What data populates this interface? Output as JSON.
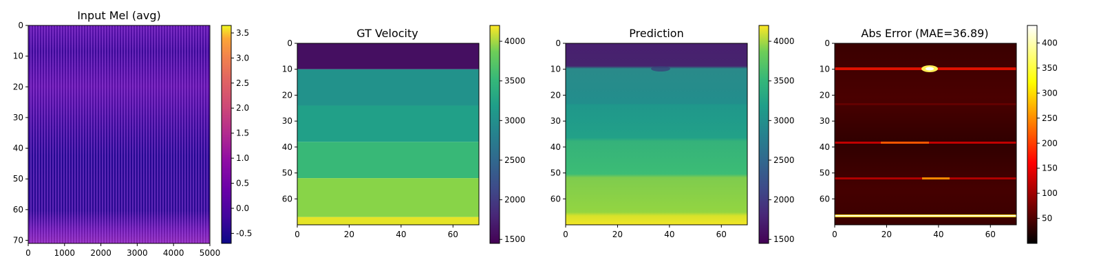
{
  "chart_data": [
    {
      "type": "heatmap",
      "title": "Input Mel (avg)",
      "colormap": "plasma",
      "x_ticks": [
        "0",
        "1000",
        "2000",
        "3000",
        "4000",
        "5000"
      ],
      "y_ticks": [
        "0",
        "10",
        "20",
        "30",
        "40",
        "50",
        "60",
        "70"
      ],
      "xlim": [
        0,
        5000
      ],
      "ylim": [
        71,
        0
      ],
      "colorbar_ticks": [
        "-0.5",
        "0.0",
        "0.5",
        "1.0",
        "1.5",
        "2.0",
        "2.5",
        "3.0",
        "3.5"
      ],
      "colorbar_range": [
        -0.7,
        3.65
      ]
    },
    {
      "type": "heatmap",
      "title": "GT Velocity",
      "colormap": "viridis",
      "x_ticks": [
        "0",
        "20",
        "40",
        "60"
      ],
      "y_ticks": [
        "0",
        "10",
        "20",
        "30",
        "40",
        "50",
        "60"
      ],
      "xlim": [
        0,
        70
      ],
      "ylim": [
        70,
        0
      ],
      "colorbar_ticks": [
        "1500",
        "2000",
        "2500",
        "3000",
        "3500",
        "4000"
      ],
      "colorbar_range": [
        1450,
        4200
      ],
      "layers": [
        {
          "depth_from": 0,
          "depth_to": 10,
          "velocity": 1560
        },
        {
          "depth_from": 10,
          "depth_to": 24,
          "velocity": 2850
        },
        {
          "depth_from": 24,
          "depth_to": 38,
          "velocity": 3000
        },
        {
          "depth_from": 38,
          "depth_to": 52,
          "velocity": 3300
        },
        {
          "depth_from": 52,
          "depth_to": 67,
          "velocity": 3700
        },
        {
          "depth_from": 67,
          "depth_to": 70,
          "velocity": 4100
        }
      ]
    },
    {
      "type": "heatmap",
      "title": "Prediction",
      "colormap": "viridis",
      "x_ticks": [
        "0",
        "20",
        "40",
        "60"
      ],
      "y_ticks": [
        "0",
        "10",
        "20",
        "30",
        "40",
        "50",
        "60"
      ],
      "xlim": [
        0,
        70
      ],
      "ylim": [
        70,
        0
      ],
      "colorbar_ticks": [
        "1500",
        "2000",
        "2500",
        "3000",
        "3500",
        "4000"
      ],
      "colorbar_range": [
        1450,
        4200
      ]
    },
    {
      "type": "heatmap",
      "title": "Abs Error (MAE=36.89)",
      "colormap": "hot",
      "x_ticks": [
        "0",
        "20",
        "40",
        "60"
      ],
      "y_ticks": [
        "0",
        "10",
        "20",
        "30",
        "40",
        "50",
        "60"
      ],
      "xlim": [
        0,
        70
      ],
      "ylim": [
        70,
        0
      ],
      "colorbar_ticks": [
        "50",
        "100",
        "150",
        "200",
        "250",
        "300",
        "350",
        "400"
      ],
      "colorbar_range": [
        0,
        435
      ]
    }
  ]
}
